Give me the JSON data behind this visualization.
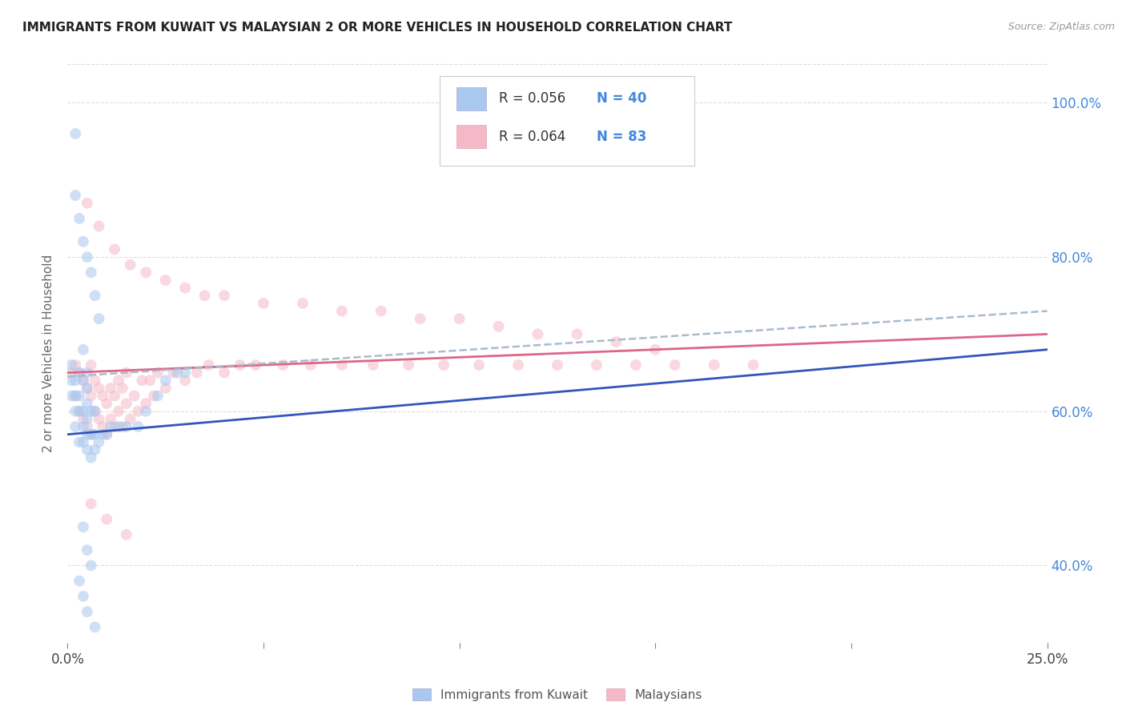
{
  "title": "IMMIGRANTS FROM KUWAIT VS MALAYSIAN 2 OR MORE VEHICLES IN HOUSEHOLD CORRELATION CHART",
  "source": "Source: ZipAtlas.com",
  "ylabel": "2 or more Vehicles in Household",
  "legend_label1": "Immigrants from Kuwait",
  "legend_label2": "Malaysians",
  "R1": 0.056,
  "N1": 40,
  "R2": 0.064,
  "N2": 83,
  "xlim": [
    0.0,
    0.25
  ],
  "ylim": [
    0.3,
    1.05
  ],
  "xticks": [
    0.0,
    0.05,
    0.1,
    0.15,
    0.2,
    0.25
  ],
  "xticklabels": [
    "0.0%",
    "",
    "",
    "",
    "",
    "25.0%"
  ],
  "yticks_right": [
    0.4,
    0.6,
    0.8,
    1.0
  ],
  "yticklabels_right": [
    "40.0%",
    "60.0%",
    "80.0%",
    "100.0%"
  ],
  "color_blue": "#A8C8F0",
  "color_pink": "#F5B8C8",
  "line_blue": "#3355BB",
  "line_pink": "#DD6688",
  "line_dashed_color": "#AABBCC",
  "bg_color": "#FFFFFF",
  "grid_color": "#DDDDDD",
  "title_color": "#222222",
  "right_axis_color": "#4488DD",
  "marker_size": 100,
  "marker_alpha": 0.55,
  "kuwait_x": [
    0.001,
    0.001,
    0.001,
    0.002,
    0.002,
    0.002,
    0.002,
    0.003,
    0.003,
    0.003,
    0.003,
    0.004,
    0.004,
    0.004,
    0.004,
    0.004,
    0.005,
    0.005,
    0.005,
    0.005,
    0.005,
    0.005,
    0.006,
    0.006,
    0.006,
    0.007,
    0.007,
    0.007,
    0.008,
    0.009,
    0.01,
    0.011,
    0.013,
    0.015,
    0.018,
    0.02,
    0.023,
    0.025,
    0.028,
    0.03
  ],
  "kuwait_y": [
    0.62,
    0.64,
    0.66,
    0.58,
    0.6,
    0.62,
    0.64,
    0.56,
    0.6,
    0.62,
    0.65,
    0.56,
    0.58,
    0.6,
    0.64,
    0.68,
    0.55,
    0.57,
    0.59,
    0.61,
    0.63,
    0.65,
    0.54,
    0.57,
    0.6,
    0.55,
    0.57,
    0.6,
    0.56,
    0.57,
    0.57,
    0.58,
    0.58,
    0.58,
    0.58,
    0.6,
    0.62,
    0.64,
    0.65,
    0.65
  ],
  "kuwait_y_outliers": [
    0.96,
    0.88,
    0.85,
    0.82,
    0.8,
    0.78,
    0.75,
    0.72,
    0.45,
    0.42,
    0.4,
    0.38,
    0.36,
    0.34,
    0.32
  ],
  "kuwait_x_outliers": [
    0.002,
    0.002,
    0.003,
    0.004,
    0.005,
    0.006,
    0.007,
    0.008,
    0.004,
    0.005,
    0.006,
    0.003,
    0.004,
    0.005,
    0.007
  ],
  "malaysian_x": [
    0.001,
    0.002,
    0.002,
    0.003,
    0.003,
    0.004,
    0.004,
    0.005,
    0.005,
    0.006,
    0.006,
    0.006,
    0.007,
    0.007,
    0.008,
    0.008,
    0.009,
    0.009,
    0.01,
    0.01,
    0.011,
    0.011,
    0.012,
    0.012,
    0.013,
    0.013,
    0.014,
    0.014,
    0.015,
    0.015,
    0.016,
    0.017,
    0.018,
    0.019,
    0.02,
    0.021,
    0.022,
    0.023,
    0.025,
    0.027,
    0.03,
    0.033,
    0.036,
    0.04,
    0.044,
    0.048,
    0.055,
    0.062,
    0.07,
    0.078,
    0.087,
    0.096,
    0.105,
    0.115,
    0.125,
    0.135,
    0.145,
    0.155,
    0.165,
    0.175,
    0.005,
    0.008,
    0.012,
    0.016,
    0.02,
    0.025,
    0.03,
    0.035,
    0.04,
    0.05,
    0.06,
    0.07,
    0.08,
    0.09,
    0.1,
    0.11,
    0.12,
    0.13,
    0.14,
    0.15,
    0.006,
    0.01,
    0.015
  ],
  "malaysian_y": [
    0.65,
    0.62,
    0.66,
    0.6,
    0.65,
    0.59,
    0.64,
    0.58,
    0.63,
    0.57,
    0.62,
    0.66,
    0.6,
    0.64,
    0.59,
    0.63,
    0.58,
    0.62,
    0.57,
    0.61,
    0.59,
    0.63,
    0.58,
    0.62,
    0.6,
    0.64,
    0.58,
    0.63,
    0.61,
    0.65,
    0.59,
    0.62,
    0.6,
    0.64,
    0.61,
    0.64,
    0.62,
    0.65,
    0.63,
    0.65,
    0.64,
    0.65,
    0.66,
    0.65,
    0.66,
    0.66,
    0.66,
    0.66,
    0.66,
    0.66,
    0.66,
    0.66,
    0.66,
    0.66,
    0.66,
    0.66,
    0.66,
    0.66,
    0.66,
    0.66,
    0.87,
    0.84,
    0.81,
    0.79,
    0.78,
    0.77,
    0.76,
    0.75,
    0.75,
    0.74,
    0.74,
    0.73,
    0.73,
    0.72,
    0.72,
    0.71,
    0.7,
    0.7,
    0.69,
    0.68,
    0.48,
    0.46,
    0.44
  ]
}
